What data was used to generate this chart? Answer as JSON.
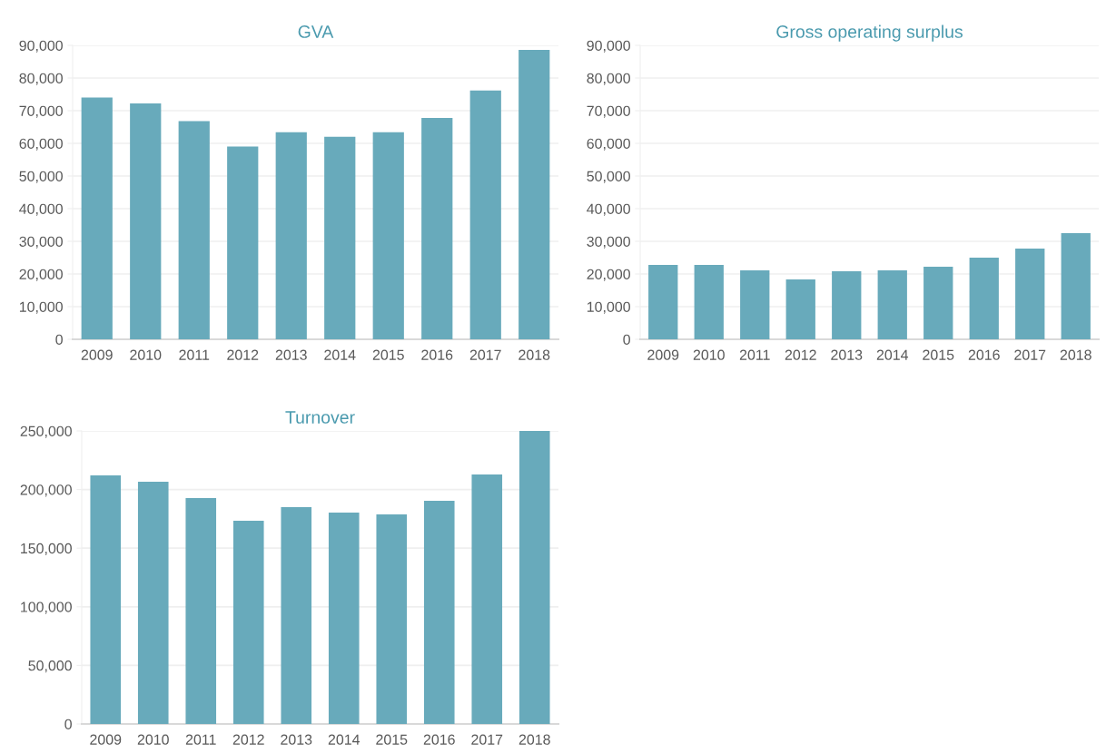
{
  "chart_data": [
    {
      "type": "bar",
      "title": "GVA",
      "categories": [
        "2009",
        "2010",
        "2011",
        "2012",
        "2013",
        "2014",
        "2015",
        "2016",
        "2017",
        "2018"
      ],
      "values": [
        74000,
        72200,
        66800,
        59000,
        63400,
        62000,
        63400,
        67800,
        76200,
        88600
      ],
      "color": "#68aabb",
      "ylim": [
        0,
        90000
      ],
      "yticks": [
        {
          "value": 0,
          "label": "0"
        },
        {
          "value": 10000,
          "label": "10,000"
        },
        {
          "value": 20000,
          "label": "20,000"
        },
        {
          "value": 30000,
          "label": "30,000"
        },
        {
          "value": 40000,
          "label": "40,000"
        },
        {
          "value": 50000,
          "label": "50,000"
        },
        {
          "value": 60000,
          "label": "60,000"
        },
        {
          "value": 70000,
          "label": "70,000"
        },
        {
          "value": 80000,
          "label": "80,000"
        },
        {
          "value": 90000,
          "label": "90,000"
        }
      ],
      "grid": "y"
    },
    {
      "type": "bar",
      "title": "Gross operating surplus",
      "categories": [
        "2009",
        "2010",
        "2011",
        "2012",
        "2013",
        "2014",
        "2015",
        "2016",
        "2017",
        "2018"
      ],
      "values": [
        22800,
        22800,
        21100,
        18300,
        20800,
        21100,
        22200,
        25000,
        27800,
        32500
      ],
      "color": "#68aabb",
      "ylim": [
        0,
        90000
      ],
      "yticks": [
        {
          "value": 0,
          "label": "0"
        },
        {
          "value": 10000,
          "label": "10,000"
        },
        {
          "value": 20000,
          "label": "20,000"
        },
        {
          "value": 30000,
          "label": "30,000"
        },
        {
          "value": 40000,
          "label": "40,000"
        },
        {
          "value": 50000,
          "label": "50,000"
        },
        {
          "value": 60000,
          "label": "60,000"
        },
        {
          "value": 70000,
          "label": "70,000"
        },
        {
          "value": 80000,
          "label": "80,000"
        },
        {
          "value": 90000,
          "label": "90,000"
        }
      ],
      "grid": "y"
    },
    {
      "type": "bar",
      "title": "Turnover",
      "categories": [
        "2009",
        "2010",
        "2011",
        "2012",
        "2013",
        "2014",
        "2015",
        "2016",
        "2017",
        "2018"
      ],
      "values": [
        212000,
        206600,
        192800,
        173400,
        185000,
        180400,
        178800,
        190400,
        212800,
        250000
      ],
      "color": "#68aabb",
      "ylim": [
        0,
        250000
      ],
      "yticks": [
        {
          "value": 0,
          "label": "0"
        },
        {
          "value": 50000,
          "label": "50,000"
        },
        {
          "value": 100000,
          "label": "100,000"
        },
        {
          "value": 150000,
          "label": "150,000"
        },
        {
          "value": 200000,
          "label": "200,000"
        },
        {
          "value": 250000,
          "label": "250,000"
        }
      ],
      "grid": "y"
    }
  ]
}
